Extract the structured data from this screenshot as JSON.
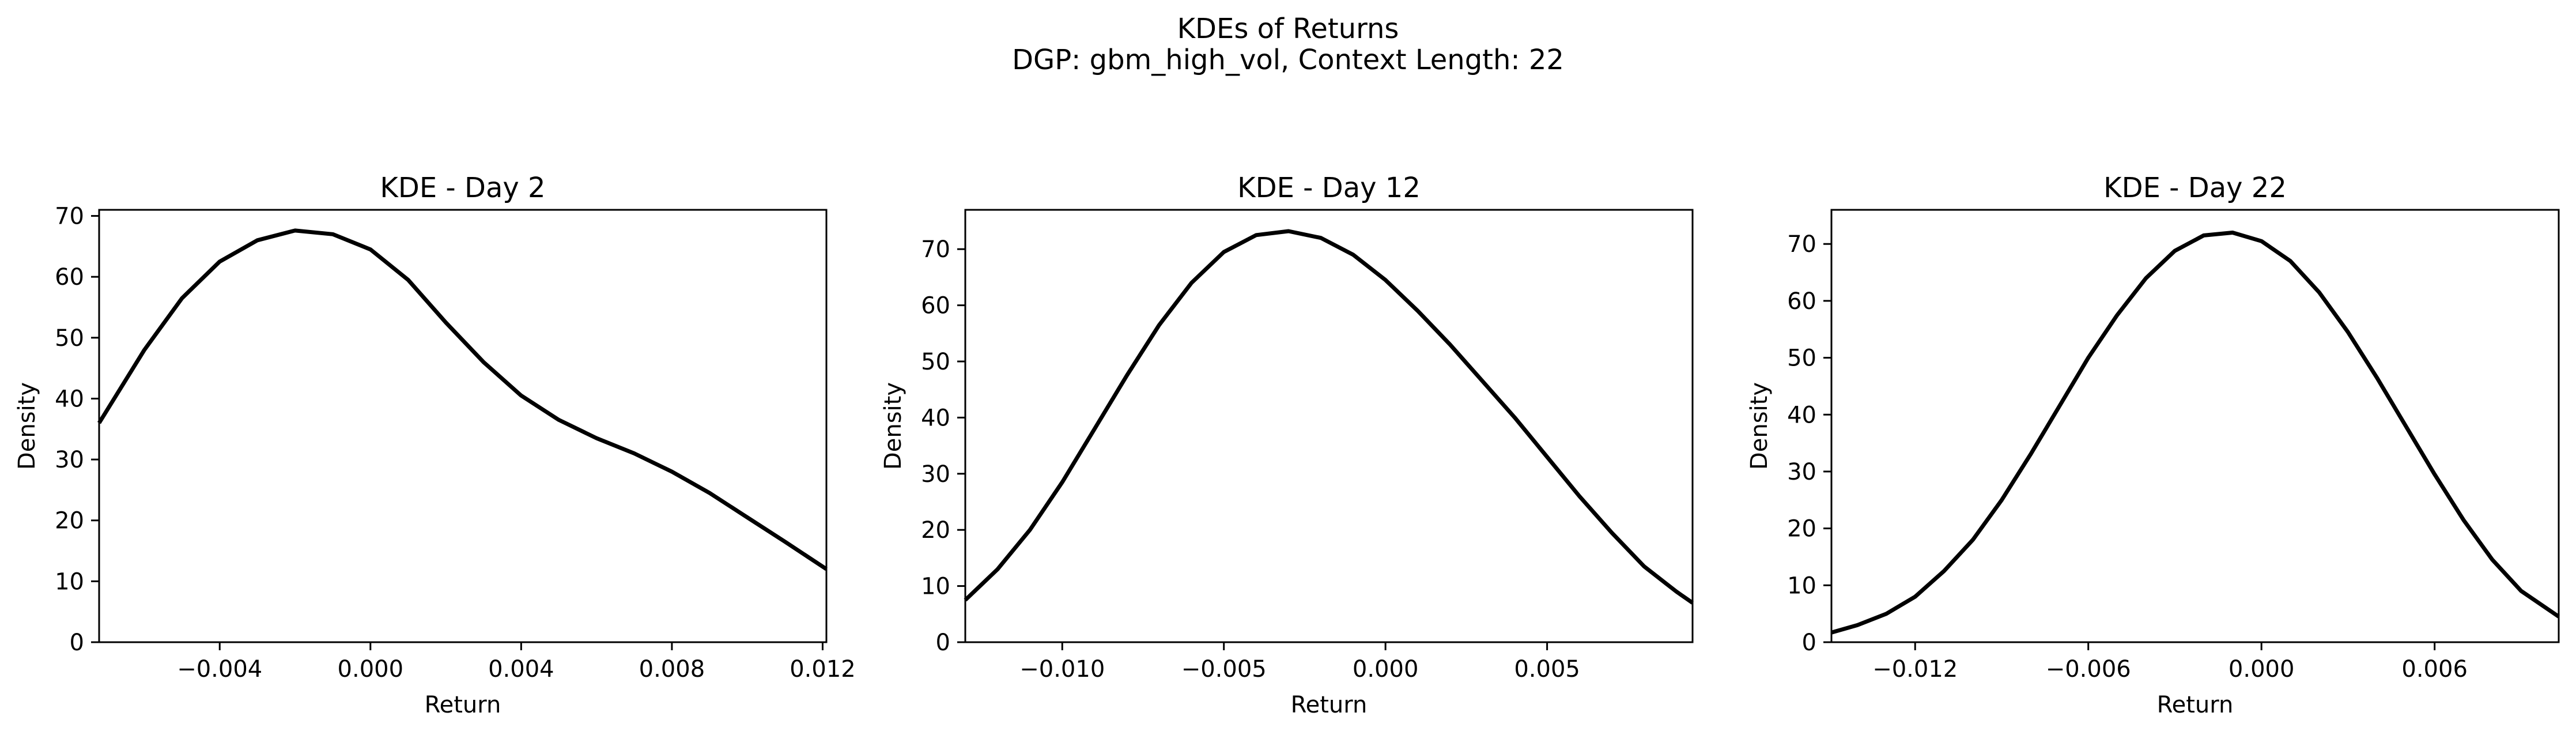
{
  "figure": {
    "title_line1": "KDEs of Returns",
    "title_line2": "DGP: gbm_high_vol, Context Length: 22"
  },
  "style": {
    "line_color": "#000000",
    "background": "#ffffff"
  },
  "chart_data": [
    {
      "type": "line",
      "title": "KDE - Day 2",
      "xlabel": "Return",
      "ylabel": "Density",
      "xlim": [
        -0.0072,
        0.0121
      ],
      "ylim": [
        0,
        71
      ],
      "xticks": [
        -0.004,
        0.0,
        0.004,
        0.008,
        0.012
      ],
      "xtick_labels": [
        "−0.004",
        "0.000",
        "0.004",
        "0.008",
        "0.012"
      ],
      "yticks": [
        0,
        10,
        20,
        30,
        40,
        50,
        60,
        70
      ],
      "ytick_labels": [
        "0",
        "10",
        "20",
        "30",
        "40",
        "50",
        "60",
        "70"
      ],
      "grid": false,
      "series": [
        {
          "x": [
            -0.0072,
            -0.006,
            -0.005,
            -0.004,
            -0.003,
            -0.002,
            -0.001,
            0.0,
            0.001,
            0.002,
            0.003,
            0.004,
            0.005,
            0.006,
            0.007,
            0.008,
            0.009,
            0.01,
            0.011,
            0.0121
          ],
          "y": [
            36,
            48,
            56.5,
            62.5,
            66,
            67.6,
            67,
            64.5,
            59.5,
            52.5,
            46,
            40.5,
            36.5,
            33.5,
            31,
            28,
            24.5,
            20.5,
            16.5,
            12
          ]
        }
      ]
    },
    {
      "type": "line",
      "title": "KDE - Day 12",
      "xlabel": "Return",
      "ylabel": "Density",
      "xlim": [
        -0.013,
        0.0095
      ],
      "ylim": [
        0,
        77
      ],
      "xticks": [
        -0.01,
        -0.005,
        0.0,
        0.005
      ],
      "xtick_labels": [
        "−0.010",
        "−0.005",
        "0.000",
        "0.005"
      ],
      "yticks": [
        0,
        10,
        20,
        30,
        40,
        50,
        60,
        70
      ],
      "ytick_labels": [
        "0",
        "10",
        "20",
        "30",
        "40",
        "50",
        "60",
        "70"
      ],
      "grid": false,
      "series": [
        {
          "x": [
            -0.013,
            -0.012,
            -0.011,
            -0.01,
            -0.009,
            -0.008,
            -0.007,
            -0.006,
            -0.005,
            -0.004,
            -0.003,
            -0.002,
            -0.001,
            0.0,
            0.001,
            0.002,
            0.003,
            0.004,
            0.005,
            0.006,
            0.007,
            0.008,
            0.009,
            0.0095
          ],
          "y": [
            7.5,
            13,
            20,
            28.5,
            38,
            47.5,
            56.5,
            64,
            69.5,
            72.5,
            73.2,
            72,
            69,
            64.5,
            59,
            53,
            46.5,
            40,
            33,
            26,
            19.5,
            13.5,
            9,
            7
          ]
        }
      ]
    },
    {
      "type": "line",
      "title": "KDE - Day 22",
      "xlabel": "Return",
      "ylabel": "Density",
      "xlim": [
        -0.0149,
        0.0103
      ],
      "ylim": [
        0,
        76
      ],
      "xticks": [
        -0.012,
        -0.006,
        0.0,
        0.006
      ],
      "xtick_labels": [
        "−0.012",
        "−0.006",
        "0.000",
        "0.006"
      ],
      "yticks": [
        0,
        10,
        20,
        30,
        40,
        50,
        60,
        70
      ],
      "ytick_labels": [
        "0",
        "10",
        "20",
        "30",
        "40",
        "50",
        "60",
        "70"
      ],
      "grid": false,
      "series": [
        {
          "x": [
            -0.0149,
            -0.014,
            -0.013,
            -0.012,
            -0.011,
            -0.01,
            -0.009,
            -0.008,
            -0.007,
            -0.006,
            -0.005,
            -0.004,
            -0.003,
            -0.002,
            -0.001,
            0.0,
            0.001,
            0.002,
            0.003,
            0.004,
            0.005,
            0.006,
            0.007,
            0.008,
            0.009,
            0.0103
          ],
          "y": [
            1.7,
            3,
            5,
            8,
            12.5,
            18,
            25,
            33,
            41.5,
            50,
            57.5,
            64,
            68.8,
            71.5,
            72,
            70.5,
            67,
            61.5,
            54.5,
            46.5,
            38,
            29.5,
            21.5,
            14.5,
            9,
            4.5
          ]
        }
      ]
    }
  ]
}
